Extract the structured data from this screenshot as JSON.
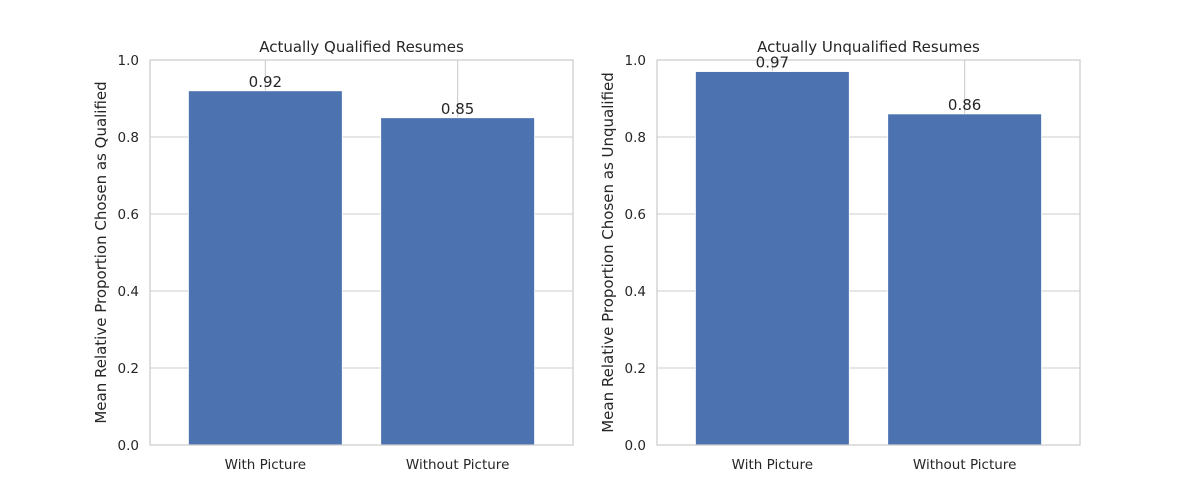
{
  "chart_data": [
    {
      "type": "bar",
      "title": "Actually Qualified Resumes",
      "xlabel": "",
      "ylabel": "Mean Relative Proportion Chosen as Qualified",
      "categories": [
        "With Picture",
        "Without Picture"
      ],
      "values": [
        0.92,
        0.85
      ],
      "value_labels": [
        "0.92",
        "0.85"
      ],
      "ylim": [
        0,
        1.0
      ],
      "yticks": [
        "0.0",
        "0.2",
        "0.4",
        "0.6",
        "0.8",
        "1.0"
      ],
      "grid": true,
      "legend": "none",
      "bar_color": "#4c72b0"
    },
    {
      "type": "bar",
      "title": "Actually Unqualified Resumes",
      "xlabel": "",
      "ylabel": "Mean Relative Proportion Chosen as Unqualified",
      "categories": [
        "With Picture",
        "Without Picture"
      ],
      "values": [
        0.97,
        0.86
      ],
      "value_labels": [
        "0.97",
        "0.86"
      ],
      "ylim": [
        0,
        1.0
      ],
      "yticks": [
        "0.0",
        "0.2",
        "0.4",
        "0.6",
        "0.8",
        "1.0"
      ],
      "grid": true,
      "legend": "none",
      "bar_color": "#4c72b0"
    }
  ]
}
